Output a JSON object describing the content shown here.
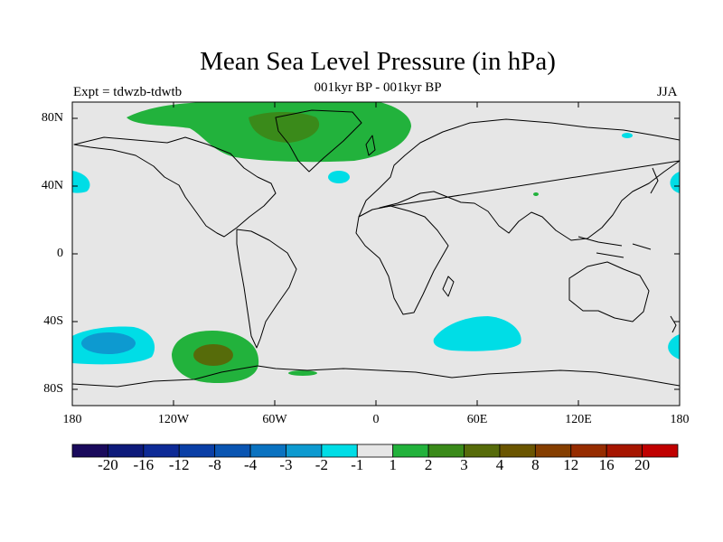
{
  "title": "Mean Sea Level Pressure (in hPa)",
  "subtitle": "001kyr BP - 001kyr BP",
  "left_label": "Expt = tdwzb-tdwtb",
  "right_label": "JJA",
  "axes": {
    "y_ticks": [
      "80N",
      "40N",
      "0",
      "40S",
      "80S"
    ],
    "x_ticks": [
      "180",
      "120W",
      "60W",
      "0",
      "60E",
      "120E",
      "180"
    ]
  },
  "colorbar": {
    "colors": [
      "#1a0a5c",
      "#0d1a7a",
      "#0d2a96",
      "#0a3fa6",
      "#0a55b2",
      "#0a72c0",
      "#0d9ad0",
      "#00dde6",
      "#e6e6e6",
      "#22b23c",
      "#3a8a1a",
      "#566b0a",
      "#6a5500",
      "#853e00",
      "#962c00",
      "#a61500",
      "#c00000"
    ],
    "labels": [
      "-20",
      "-16",
      "-12",
      "-8",
      "-4",
      "-3",
      "-2",
      "-1",
      "1",
      "2",
      "3",
      "4",
      "8",
      "12",
      "16",
      "20"
    ]
  },
  "colors": {
    "neutral": "#e6e6e6",
    "green": "#22b23c",
    "dark_green": "#3a8a1a",
    "olive": "#566b0a",
    "cyan": "#00dde6",
    "blue": "#0d9ad0"
  }
}
